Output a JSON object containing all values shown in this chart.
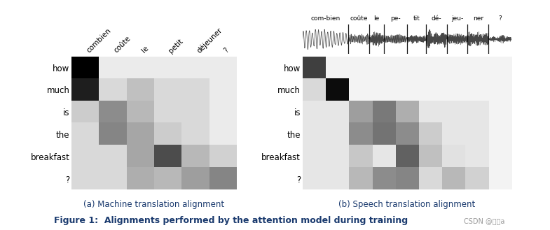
{
  "left_x_labels": [
    "combien",
    "coûte",
    "le",
    "petit",
    "déjeuner",
    "?"
  ],
  "left_y_labels": [
    "how",
    "much",
    "is",
    "the",
    "breakfast",
    "?"
  ],
  "left_matrix": [
    [
      0.0,
      0.92,
      0.92,
      0.92,
      0.92,
      0.92
    ],
    [
      0.12,
      0.85,
      0.75,
      0.85,
      0.85,
      0.92
    ],
    [
      0.8,
      0.55,
      0.72,
      0.85,
      0.85,
      0.92
    ],
    [
      0.85,
      0.52,
      0.65,
      0.8,
      0.85,
      0.92
    ],
    [
      0.85,
      0.85,
      0.65,
      0.3,
      0.72,
      0.82
    ],
    [
      0.85,
      0.85,
      0.68,
      0.72,
      0.62,
      0.52
    ]
  ],
  "right_x_labels": [
    "com-bien",
    "coûte",
    "le",
    "pe-",
    "tit",
    "dé-",
    "jeu-",
    "ner",
    "?"
  ],
  "right_y_labels": [
    "how",
    "much",
    "is",
    "the",
    "breakfast",
    "?"
  ],
  "right_matrix": [
    [
      0.25,
      0.95,
      0.95,
      0.95,
      0.95,
      0.95,
      0.95,
      0.95,
      0.95
    ],
    [
      0.85,
      0.05,
      0.95,
      0.95,
      0.95,
      0.95,
      0.95,
      0.95,
      0.95
    ],
    [
      0.9,
      0.9,
      0.62,
      0.48,
      0.68,
      0.9,
      0.9,
      0.9,
      0.95
    ],
    [
      0.9,
      0.9,
      0.55,
      0.45,
      0.55,
      0.8,
      0.9,
      0.9,
      0.95
    ],
    [
      0.9,
      0.9,
      0.78,
      0.9,
      0.38,
      0.75,
      0.88,
      0.9,
      0.95
    ],
    [
      0.9,
      0.9,
      0.72,
      0.55,
      0.52,
      0.85,
      0.72,
      0.82,
      0.95
    ]
  ],
  "caption_a": "(a) Machine translation alignment",
  "caption_b": "(b) Speech translation alignment",
  "figure_caption": "Figure 1:  Alignments performed by the attention model during training",
  "watermark": "CSDN @古重a",
  "bg_color": "#ffffff",
  "caption_color": "#1a3a6e",
  "figure_caption_color": "#1a3a6e",
  "watermark_color": "#999999",
  "wave_segments": [
    0.0,
    0.22,
    0.32,
    0.39,
    0.5,
    0.59,
    0.69,
    0.79,
    0.89,
    1.0
  ],
  "wave_amps": [
    0.85,
    0.55,
    0.65,
    0.5,
    0.4,
    0.72,
    0.6,
    0.72,
    0.28
  ]
}
